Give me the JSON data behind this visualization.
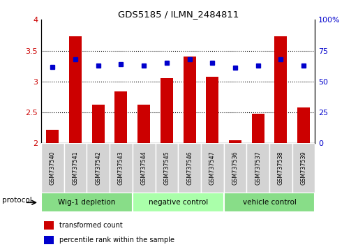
{
  "title": "GDS5185 / ILMN_2484811",
  "samples": [
    "GSM737540",
    "GSM737541",
    "GSM737542",
    "GSM737543",
    "GSM737544",
    "GSM737545",
    "GSM737546",
    "GSM737547",
    "GSM737536",
    "GSM737537",
    "GSM737538",
    "GSM737539"
  ],
  "bar_values": [
    2.22,
    3.73,
    2.62,
    2.84,
    2.62,
    3.05,
    3.4,
    3.08,
    2.05,
    2.48,
    3.73,
    2.58
  ],
  "dot_values_pct": [
    62,
    68,
    63,
    64,
    63,
    65,
    68,
    65,
    61,
    63,
    68,
    63
  ],
  "bar_bottom": 2.0,
  "ylim_left": [
    2.0,
    4.0
  ],
  "ylim_right": [
    0,
    100
  ],
  "yticks_left": [
    2.0,
    2.5,
    3.0,
    3.5,
    4.0
  ],
  "ytick_labels_left": [
    "2",
    "2.5",
    "3",
    "3.5",
    "4"
  ],
  "yticks_right": [
    0,
    25,
    50,
    75,
    100
  ],
  "ytick_labels_right": [
    "0",
    "25",
    "50",
    "75",
    "100%"
  ],
  "bar_color": "#cc0000",
  "dot_color": "#0000cc",
  "groups": [
    {
      "label": "Wig-1 depletion",
      "indices": [
        0,
        1,
        2,
        3
      ],
      "color": "#88dd88"
    },
    {
      "label": "negative control",
      "indices": [
        4,
        5,
        6,
        7
      ],
      "color": "#aaffaa"
    },
    {
      "label": "vehicle control",
      "indices": [
        8,
        9,
        10,
        11
      ],
      "color": "#88dd88"
    }
  ],
  "protocol_label": "protocol",
  "legend_items": [
    {
      "color": "#cc0000",
      "label": "transformed count"
    },
    {
      "color": "#0000cc",
      "label": "percentile rank within the sample"
    }
  ]
}
